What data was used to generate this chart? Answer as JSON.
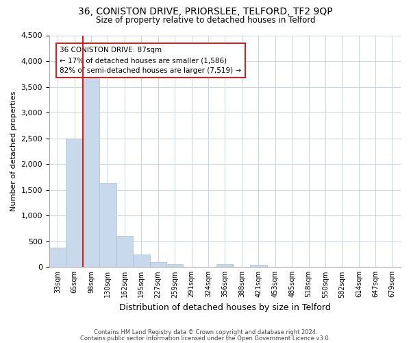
{
  "title": "36, CONISTON DRIVE, PRIORSLEE, TELFORD, TF2 9QP",
  "subtitle": "Size of property relative to detached houses in Telford",
  "xlabel": "Distribution of detached houses by size in Telford",
  "ylabel": "Number of detached properties",
  "footer1": "Contains HM Land Registry data © Crown copyright and database right 2024.",
  "footer2": "Contains public sector information licensed under the Open Government Licence v3.0.",
  "annotation_title": "36 CONISTON DRIVE: 87sqm",
  "annotation_line1": "← 17% of detached houses are smaller (1,586)",
  "annotation_line2": "82% of semi-detached houses are larger (7,519) →",
  "bar_color": "#c9d9ec",
  "bar_edge_color": "#a8c0d8",
  "vline_color": "#cc2222",
  "annotation_box_edge_color": "#cc2222",
  "background_color": "#ffffff",
  "grid_color": "#c8d4e0",
  "categories": [
    "33sqm",
    "65sqm",
    "98sqm",
    "130sqm",
    "162sqm",
    "195sqm",
    "227sqm",
    "259sqm",
    "291sqm",
    "324sqm",
    "356sqm",
    "388sqm",
    "421sqm",
    "453sqm",
    "485sqm",
    "518sqm",
    "550sqm",
    "582sqm",
    "614sqm",
    "647sqm",
    "679sqm"
  ],
  "values": [
    380,
    2500,
    3700,
    1625,
    600,
    240,
    100,
    60,
    0,
    0,
    55,
    0,
    50,
    0,
    0,
    0,
    0,
    0,
    0,
    0,
    0
  ],
  "ylim": [
    0,
    4500
  ],
  "yticks": [
    0,
    500,
    1000,
    1500,
    2000,
    2500,
    3000,
    3500,
    4000,
    4500
  ],
  "vline_bar_index": 2
}
